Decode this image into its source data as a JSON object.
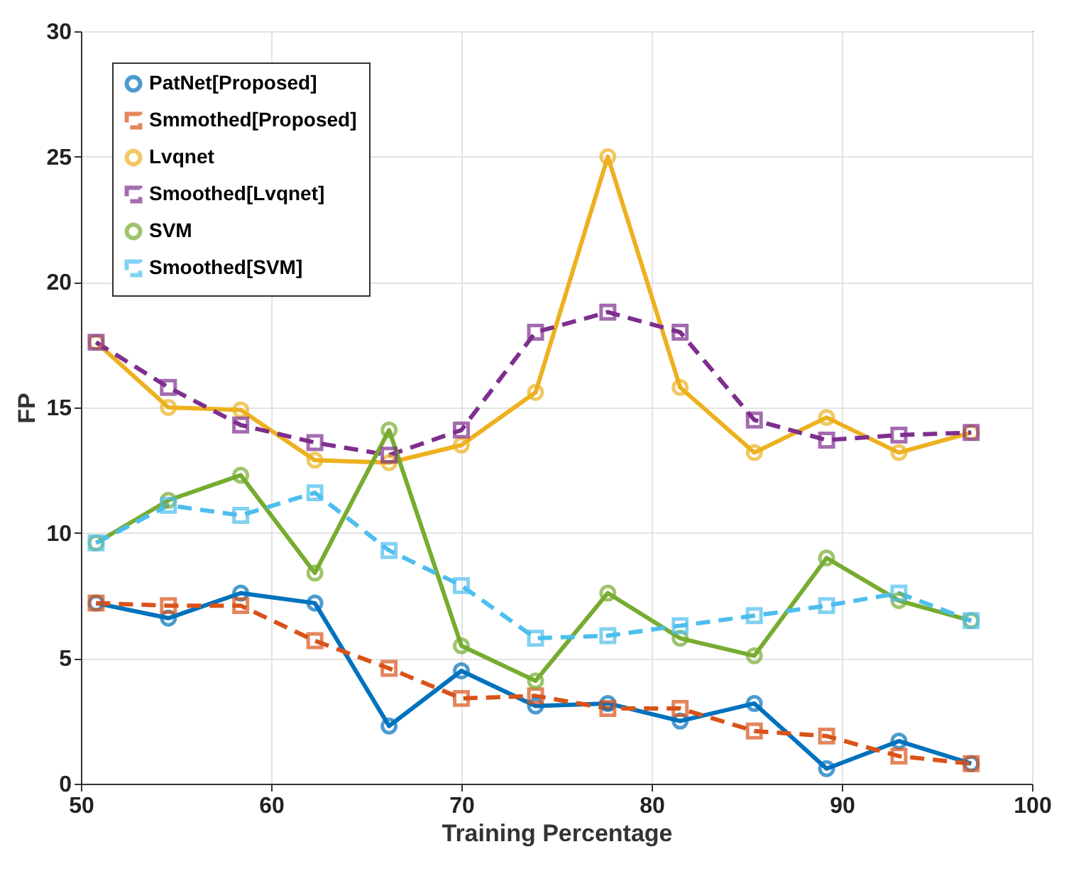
{
  "chart_data": {
    "type": "line",
    "xlabel": "Training Percentage",
    "ylabel": "FP",
    "x": [
      50.8,
      54.6,
      58.4,
      62.3,
      66.2,
      70.0,
      73.9,
      77.7,
      81.5,
      85.4,
      89.2,
      93.0,
      96.8
    ],
    "xlim": [
      50,
      100
    ],
    "xticks": [
      50,
      60,
      70,
      80,
      90,
      100
    ],
    "ylim": [
      0,
      30
    ],
    "yticks": [
      0,
      5,
      10,
      15,
      20,
      25,
      30
    ],
    "grid": true,
    "legend": "top left",
    "series": [
      {
        "name": "PatNet[Proposed]",
        "color": "#0072bd",
        "marker": "circle",
        "line_style": "solid",
        "values": [
          7.2,
          6.6,
          7.6,
          7.2,
          2.3,
          4.5,
          3.1,
          3.2,
          2.5,
          3.2,
          0.6,
          1.7,
          0.8
        ]
      },
      {
        "name": "Smmothed[Proposed]",
        "color": "#d95319",
        "marker": "square",
        "line_style": "dashed",
        "values": [
          7.2,
          7.1,
          7.1,
          5.7,
          4.6,
          3.4,
          3.5,
          3.0,
          3.0,
          2.1,
          1.9,
          1.1,
          0.8
        ]
      },
      {
        "name": "Lvqnet",
        "color": "#edb120",
        "marker": "circle",
        "line_style": "solid",
        "values": [
          17.6,
          15.0,
          14.9,
          12.9,
          12.8,
          13.5,
          15.6,
          25.0,
          15.8,
          13.2,
          14.6,
          13.2,
          14.0
        ]
      },
      {
        "name": "Smoothed[Lvqnet]",
        "color": "#7e2f8e",
        "marker": "square",
        "line_style": "dashed",
        "values": [
          17.6,
          15.8,
          14.3,
          13.6,
          13.1,
          14.1,
          18.0,
          18.8,
          18.0,
          14.5,
          13.7,
          13.9,
          14.0
        ]
      },
      {
        "name": "SVM",
        "color": "#77ac30",
        "marker": "circle",
        "line_style": "solid",
        "values": [
          9.6,
          11.3,
          12.3,
          8.4,
          14.1,
          5.5,
          4.1,
          7.6,
          5.8,
          5.1,
          9.0,
          7.3,
          6.5
        ]
      },
      {
        "name": "Smoothed[SVM]",
        "color": "#4dbeee",
        "marker": "square",
        "line_style": "dashed",
        "values": [
          9.6,
          11.1,
          10.7,
          11.6,
          9.3,
          7.9,
          5.8,
          5.9,
          6.3,
          6.7,
          7.1,
          7.6,
          6.5
        ]
      }
    ]
  }
}
